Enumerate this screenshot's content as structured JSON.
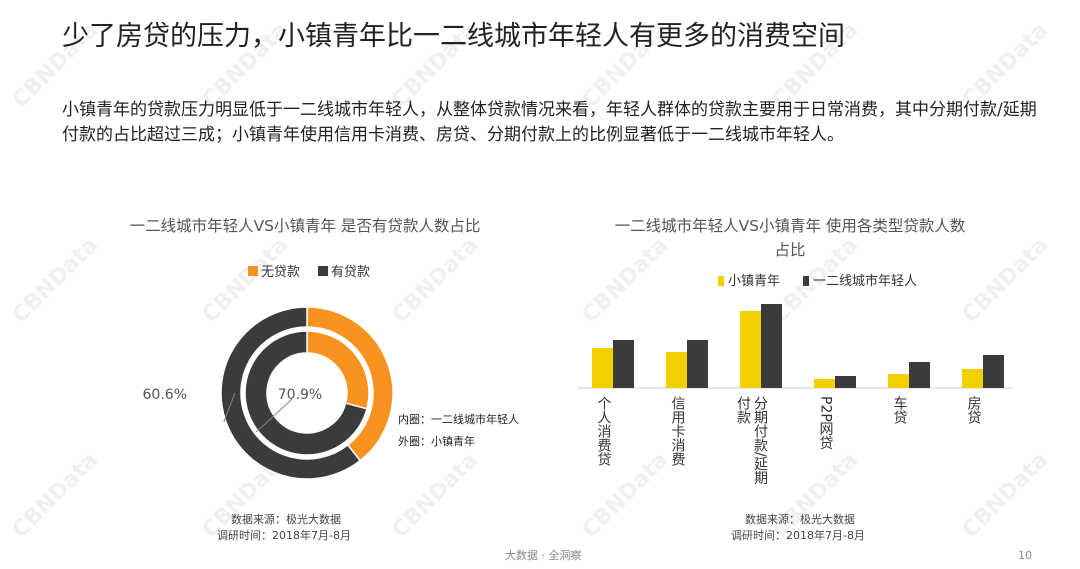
{
  "title": "少了房贷的压力，小镇青年比一二线城市年轻人有更多的消费空间",
  "description": "小镇青年的贷款压力明显低于一二线城市年轻人，从整体贷款情况来看，年轻人群体的贷款主要用于日常消费，其中分期付款/延期付款的占比超过三成；小镇青年使用信用卡消费、房贷、分期付款上的比例显著低于一二线城市年轻人。",
  "watermark": "CBNData",
  "footer": "大数据 · 全洞察",
  "page_number": "10",
  "chart_data": [
    {
      "type": "donut",
      "title": "一二线城市年轻人VS小镇青年 是否有贷款人数占比",
      "categories": [
        "无贷款",
        "有贷款"
      ],
      "colors": [
        "#f7931e",
        "#3b3b3b"
      ],
      "series": [
        {
          "name": "外圈：小镇青年",
          "values": [
            39.4,
            60.6
          ],
          "value_labels": [
            null,
            "60.6%"
          ]
        },
        {
          "name": "内圈：一二线城市年轻人",
          "values": [
            29.1,
            70.9
          ],
          "value_labels": [
            null,
            "70.9%"
          ]
        }
      ],
      "source": "数据来源：极光大数据",
      "period": "调研时间：2018年7月-8月"
    },
    {
      "type": "bar",
      "title": "一二线城市年轻人VS小镇青年 使用各类型贷款人数占比",
      "categories": [
        "个人消费贷",
        "信用卡消费",
        "分期付款/延期付款",
        "P2P网贷",
        "车贷",
        "房贷"
      ],
      "series": [
        {
          "name": "小镇青年",
          "color": "#f5d000",
          "values": [
            40,
            36,
            77,
            9,
            14,
            19
          ]
        },
        {
          "name": "一二线城市年轻人",
          "color": "#3b3b3b",
          "values": [
            48,
            48,
            84,
            12,
            26,
            33
          ]
        }
      ],
      "source": "数据来源：极光大数据",
      "period": "调研时间：2018年7月-8月"
    }
  ]
}
